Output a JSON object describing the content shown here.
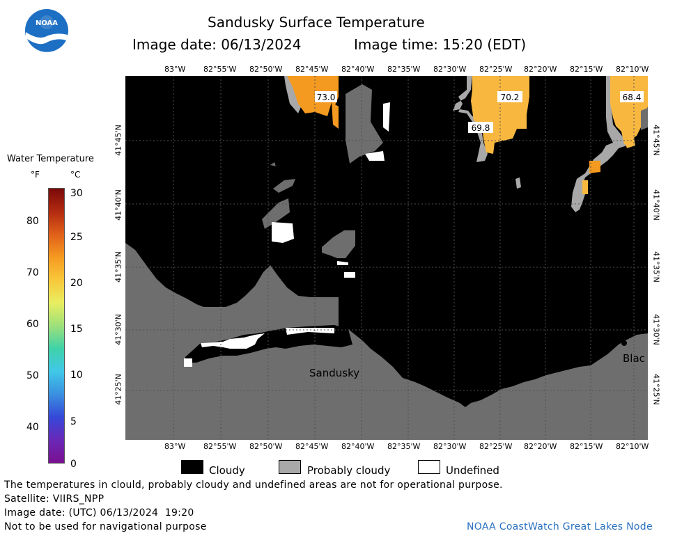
{
  "header": {
    "title": "Sandusky Surface Temperature",
    "image_date": "Image date: 06/13/2024",
    "image_time": "Image time: 15:20 (EDT)",
    "logo_text": "NOAA"
  },
  "colorbar": {
    "title": "Water Temperature",
    "unit_f": "°F",
    "unit_c": "°C",
    "f_ticks": [
      "80",
      "70",
      "60",
      "50",
      "40"
    ],
    "c_ticks": [
      "30",
      "25",
      "20",
      "15",
      "10",
      "5",
      "0"
    ],
    "colors": [
      "#7a0a0a",
      "#b22a10",
      "#e0601a",
      "#f59a20",
      "#f8c83a",
      "#e8ee60",
      "#9ee07a",
      "#3fd2a8",
      "#40c8e8",
      "#3a90e0",
      "#3548d8",
      "#6a28b8",
      "#7a1090"
    ]
  },
  "map": {
    "lon_labels": [
      "83°W",
      "82°55'W",
      "82°50'W",
      "82°45'W",
      "82°40'W",
      "82°35'W",
      "82°30'W",
      "82°25'W",
      "82°20'W",
      "82°15'W",
      "82°10'W"
    ],
    "lat_labels": [
      "41°45'N",
      "41°40'N",
      "41°35'N",
      "41°30'N",
      "41°25'N"
    ],
    "place_labels": {
      "sandusky": "Sandusky",
      "blac": "Blac"
    },
    "temp_labels": [
      "73.0",
      "70.2",
      "69.8",
      "68.4"
    ],
    "colors": {
      "cloudy": "#000000",
      "probably_cloudy": "#6e6e6e",
      "land": "#6e6e6e",
      "warm_water": "#f8b840",
      "orange_water": "#f59a20",
      "light_gray": "#a8a8a8"
    }
  },
  "legend": {
    "cloudy": "Cloudy",
    "probably_cloudy": "Probably cloudy",
    "undefined": "Undefined"
  },
  "footer": {
    "note": "The temperatures in clould, probably cloudy and undefined areas are not for operational purpose.",
    "satellite": "Satellite: VIIRS_NPP",
    "utc_date": "Image date: (UTC) 06/13/2024  19:20",
    "navigation": "Not to be used for navigational purpose",
    "credit": "NOAA CoastWatch Great Lakes Node"
  }
}
